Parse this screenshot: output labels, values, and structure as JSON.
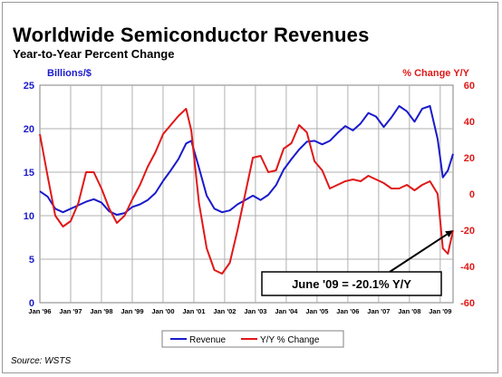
{
  "title": "Worldwide Semiconductor Revenues",
  "subtitle": "Year-to-Year Percent Change",
  "source": "Source: WSTS",
  "chart_data": {
    "type": "line",
    "left_axis_label": "Billions/$",
    "right_axis_label": "% Change Y/Y",
    "ylim_left": [
      0,
      25
    ],
    "ylim_right": [
      -60,
      60
    ],
    "yticks_left": [
      "0",
      "5",
      "10",
      "15",
      "20",
      "25"
    ],
    "yticks_right": [
      "-60",
      "-40",
      "-20",
      "0",
      "20",
      "40",
      "60"
    ],
    "x_tick_labels": [
      "Jan '96",
      "Jan '97",
      "Jan '98",
      "Jan '99",
      "Jan '00",
      "Jan '01",
      "Jan '02",
      "Jan '03",
      "Jan '04",
      "Jan '05",
      "Jan '06",
      "Jan '07",
      "Jan '08",
      "Jan '09"
    ],
    "x_range": [
      "1996-01",
      "2009-06"
    ],
    "grid": true,
    "legend_position": "bottom-center",
    "colors": {
      "revenue": "#1a1acc",
      "yoy": "#e01818",
      "left_axis": "#1a1acc",
      "right_axis": "#e01818"
    },
    "annotation": {
      "text": "June '09 = -20.1%  Y/Y",
      "point": {
        "x": "2009-06",
        "y_right": -20.1
      }
    },
    "series": [
      {
        "name": "Revenue",
        "axis": "left",
        "points": [
          [
            "1996-01",
            12.8
          ],
          [
            "1996-04",
            12.2
          ],
          [
            "1996-07",
            10.8
          ],
          [
            "1996-10",
            10.4
          ],
          [
            "1997-01",
            10.8
          ],
          [
            "1997-04",
            11.2
          ],
          [
            "1997-07",
            11.6
          ],
          [
            "1997-10",
            11.9
          ],
          [
            "1998-01",
            11.5
          ],
          [
            "1998-04",
            10.5
          ],
          [
            "1998-07",
            10.1
          ],
          [
            "1998-10",
            10.3
          ],
          [
            "1999-01",
            11.0
          ],
          [
            "1999-04",
            11.3
          ],
          [
            "1999-07",
            11.8
          ],
          [
            "1999-10",
            12.6
          ],
          [
            "2000-01",
            14.0
          ],
          [
            "2000-04",
            15.2
          ],
          [
            "2000-07",
            16.5
          ],
          [
            "2000-10",
            18.3
          ],
          [
            "2000-12",
            18.6
          ],
          [
            "2001-03",
            15.5
          ],
          [
            "2001-06",
            12.3
          ],
          [
            "2001-09",
            10.8
          ],
          [
            "2001-12",
            10.4
          ],
          [
            "2002-03",
            10.6
          ],
          [
            "2002-06",
            11.3
          ],
          [
            "2002-09",
            11.8
          ],
          [
            "2002-12",
            12.3
          ],
          [
            "2003-03",
            11.8
          ],
          [
            "2003-06",
            12.4
          ],
          [
            "2003-09",
            13.5
          ],
          [
            "2003-12",
            15.3
          ],
          [
            "2004-03",
            16.5
          ],
          [
            "2004-06",
            17.6
          ],
          [
            "2004-09",
            18.5
          ],
          [
            "2004-12",
            18.6
          ],
          [
            "2005-03",
            18.2
          ],
          [
            "2005-06",
            18.6
          ],
          [
            "2005-09",
            19.5
          ],
          [
            "2005-12",
            20.3
          ],
          [
            "2006-03",
            19.8
          ],
          [
            "2006-06",
            20.6
          ],
          [
            "2006-09",
            21.8
          ],
          [
            "2006-12",
            21.4
          ],
          [
            "2007-03",
            20.2
          ],
          [
            "2007-06",
            21.3
          ],
          [
            "2007-09",
            22.6
          ],
          [
            "2007-12",
            22.0
          ],
          [
            "2008-03",
            20.8
          ],
          [
            "2008-06",
            22.3
          ],
          [
            "2008-09",
            22.6
          ],
          [
            "2008-12",
            18.8
          ],
          [
            "2009-02",
            14.4
          ],
          [
            "2009-04",
            15.2
          ],
          [
            "2009-06",
            17.1
          ]
        ]
      },
      {
        "name": "Y/Y % Change",
        "axis": "right",
        "points": [
          [
            "1996-01",
            33
          ],
          [
            "1996-04",
            10
          ],
          [
            "1996-07",
            -12
          ],
          [
            "1996-10",
            -18
          ],
          [
            "1997-01",
            -15
          ],
          [
            "1997-04",
            -5
          ],
          [
            "1997-07",
            12
          ],
          [
            "1997-10",
            12
          ],
          [
            "1998-01",
            3
          ],
          [
            "1998-04",
            -8
          ],
          [
            "1998-07",
            -16
          ],
          [
            "1998-10",
            -12
          ],
          [
            "1999-01",
            -3
          ],
          [
            "1999-04",
            5
          ],
          [
            "1999-07",
            15
          ],
          [
            "1999-10",
            23
          ],
          [
            "2000-01",
            33
          ],
          [
            "2000-04",
            38
          ],
          [
            "2000-07",
            43
          ],
          [
            "2000-10",
            47
          ],
          [
            "2000-12",
            35
          ],
          [
            "2001-03",
            -5
          ],
          [
            "2001-06",
            -30
          ],
          [
            "2001-09",
            -42
          ],
          [
            "2001-12",
            -44
          ],
          [
            "2002-03",
            -38
          ],
          [
            "2002-06",
            -20
          ],
          [
            "2002-09",
            0
          ],
          [
            "2002-12",
            20
          ],
          [
            "2003-03",
            21
          ],
          [
            "2003-06",
            12
          ],
          [
            "2003-09",
            13
          ],
          [
            "2003-12",
            25
          ],
          [
            "2004-03",
            28
          ],
          [
            "2004-06",
            38
          ],
          [
            "2004-09",
            34
          ],
          [
            "2004-12",
            18
          ],
          [
            "2005-03",
            13
          ],
          [
            "2005-06",
            3
          ],
          [
            "2005-09",
            5
          ],
          [
            "2005-12",
            7
          ],
          [
            "2006-03",
            8
          ],
          [
            "2006-06",
            7
          ],
          [
            "2006-09",
            10
          ],
          [
            "2006-12",
            8
          ],
          [
            "2007-03",
            6
          ],
          [
            "2007-06",
            3
          ],
          [
            "2007-09",
            3
          ],
          [
            "2007-12",
            5
          ],
          [
            "2008-03",
            2
          ],
          [
            "2008-06",
            5
          ],
          [
            "2008-09",
            7
          ],
          [
            "2008-12",
            0
          ],
          [
            "2009-02",
            -30
          ],
          [
            "2009-04",
            -33
          ],
          [
            "2009-06",
            -20.1
          ]
        ]
      }
    ]
  }
}
